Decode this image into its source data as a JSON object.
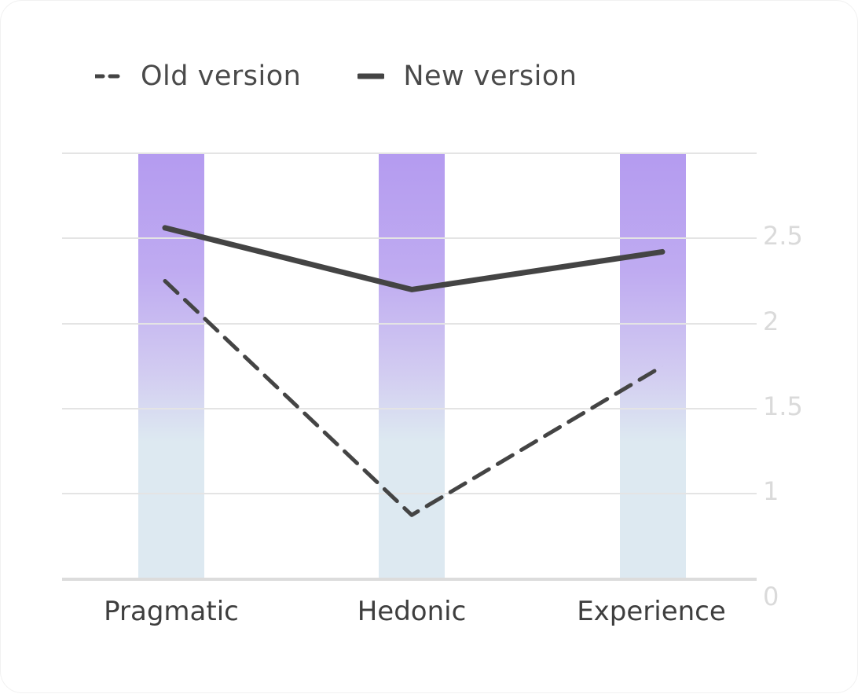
{
  "legend": {
    "old_label": "Old version",
    "new_label": "New version"
  },
  "chart_data": {
    "type": "line",
    "categories": [
      "Pragmatic",
      "Hedonic",
      "Experience"
    ],
    "series": [
      {
        "name": "Old version",
        "style": "dashed",
        "values": [
          2.25,
          0.75,
          1.75
        ]
      },
      {
        "name": "New version",
        "style": "solid",
        "values": [
          2.56,
          2.2,
          2.42
        ]
      }
    ],
    "yticks": [
      0,
      1,
      1.5,
      2,
      2.5
    ],
    "ytick_labels": [
      "0",
      "1",
      "1.5",
      "2",
      "2.5"
    ],
    "ylim": [
      0,
      2.5
    ],
    "grid": true,
    "y_axis_side": "right",
    "legend_position": "top-left",
    "background_bars": true,
    "colors": {
      "line": "#444444",
      "grid": "#e4e4e4",
      "axis": "#dcdcdc",
      "bar_top": "#b49bf0",
      "bar_bottom": "#dde9f1",
      "tick_text": "#dadada",
      "category_text": "#3e3e3e"
    },
    "xlabel": "",
    "ylabel": "",
    "title": ""
  }
}
